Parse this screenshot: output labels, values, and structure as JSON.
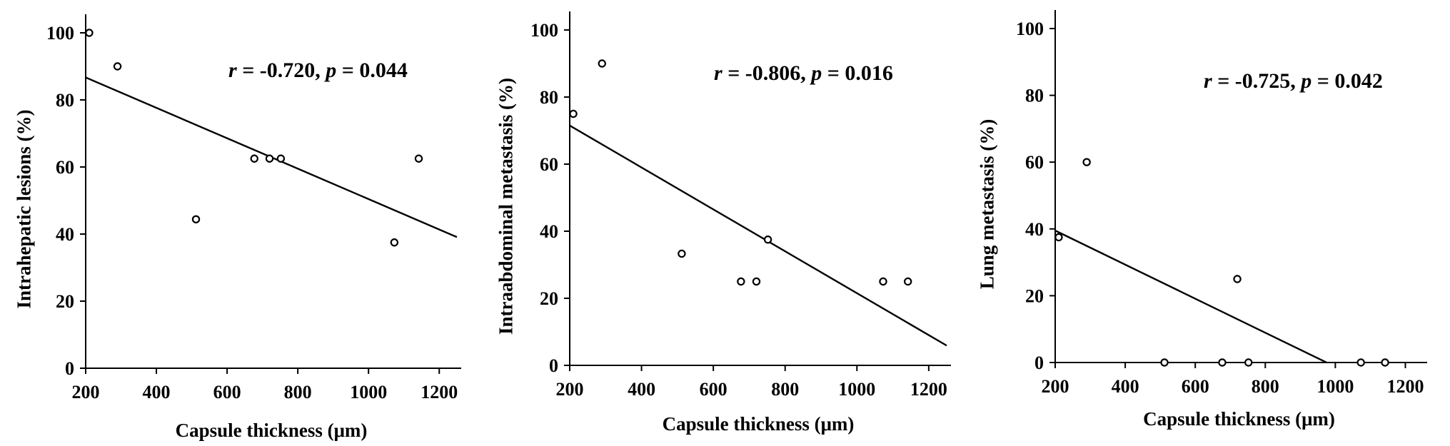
{
  "chart_data": [
    {
      "type": "scatter",
      "xlabel": "Capsule thickness (μm)",
      "ylabel": "Intrahepatic lesions (%)",
      "xlim": [
        200,
        1250
      ],
      "ylim": [
        0,
        100
      ],
      "xticks": [
        200,
        400,
        600,
        800,
        1000,
        1200
      ],
      "yticks": [
        0,
        20,
        40,
        60,
        80,
        100
      ],
      "points": [
        {
          "x": 210,
          "y": 100
        },
        {
          "x": 290,
          "y": 90
        },
        {
          "x": 512,
          "y": 44.4
        },
        {
          "x": 677,
          "y": 62.5
        },
        {
          "x": 720,
          "y": 62.5
        },
        {
          "x": 752,
          "y": 62.5
        },
        {
          "x": 1073,
          "y": 37.5
        },
        {
          "x": 1142,
          "y": 62.5
        }
      ],
      "fit_line": {
        "x": [
          200,
          1250
        ],
        "y": [
          86.7,
          39.1
        ]
      },
      "stats": {
        "r_label": "r",
        "r_text": " = -0.720, ",
        "p_label": "p",
        "p_text": " = 0.044"
      }
    },
    {
      "type": "scatter",
      "xlabel": "Capsule thickness (μm)",
      "ylabel": "Intraabdominal metastasis (%)",
      "xlim": [
        200,
        1250
      ],
      "ylim": [
        0,
        100
      ],
      "xticks": [
        200,
        400,
        600,
        800,
        1000,
        1200
      ],
      "yticks": [
        0,
        20,
        40,
        60,
        80,
        100
      ],
      "points": [
        {
          "x": 210,
          "y": 75
        },
        {
          "x": 290,
          "y": 90
        },
        {
          "x": 512,
          "y": 33.3
        },
        {
          "x": 677,
          "y": 25
        },
        {
          "x": 720,
          "y": 25
        },
        {
          "x": 752,
          "y": 37.5
        },
        {
          "x": 1073,
          "y": 25
        },
        {
          "x": 1142,
          "y": 25
        }
      ],
      "fit_line": {
        "x": [
          200,
          1250
        ],
        "y": [
          71.5,
          5.9
        ]
      },
      "stats": {
        "r_label": "r",
        "r_text": " = -0.806, ",
        "p_label": "p",
        "p_text": " = 0.016"
      }
    },
    {
      "type": "scatter",
      "xlabel": "Capsule thickness (μm)",
      "ylabel": "Lung metastasis (%)",
      "xlim": [
        200,
        1250
      ],
      "ylim": [
        0,
        100
      ],
      "xticks": [
        200,
        400,
        600,
        800,
        1000,
        1200
      ],
      "yticks": [
        0,
        20,
        40,
        60,
        80,
        100
      ],
      "points": [
        {
          "x": 210,
          "y": 37.5
        },
        {
          "x": 290,
          "y": 60
        },
        {
          "x": 512,
          "y": 0
        },
        {
          "x": 677,
          "y": 0
        },
        {
          "x": 720,
          "y": 25
        },
        {
          "x": 752,
          "y": 0
        },
        {
          "x": 1073,
          "y": 0
        },
        {
          "x": 1142,
          "y": 0
        }
      ],
      "fit_line": {
        "x": [
          200,
          975
        ],
        "y": [
          39.5,
          0
        ]
      },
      "stats": {
        "r_label": "r",
        "r_text": " = -0.725, ",
        "p_label": "p",
        "p_text": " = 0.042"
      }
    }
  ]
}
